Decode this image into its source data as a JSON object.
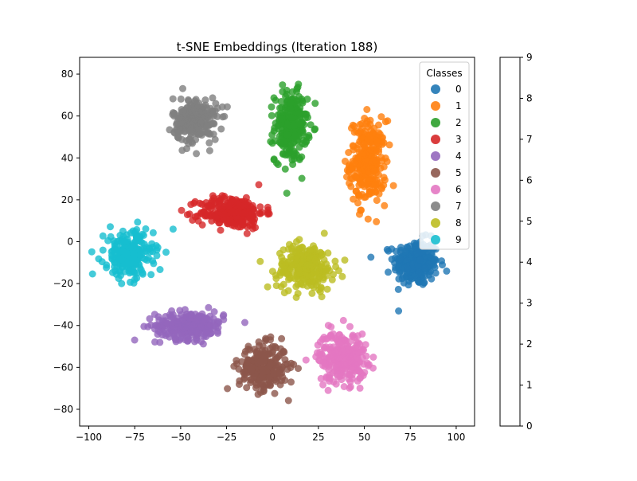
{
  "chart_data": {
    "type": "scatter",
    "title": "t-SNE Embeddings (Iteration 188)",
    "xlabel": "",
    "ylabel": "",
    "xlim": [
      -105,
      110
    ],
    "ylim": [
      -88,
      88
    ],
    "xticks": [
      -100,
      -75,
      -50,
      -25,
      0,
      25,
      50,
      75,
      100
    ],
    "yticks": [
      -80,
      -60,
      -40,
      -20,
      0,
      20,
      40,
      60,
      80
    ],
    "grid": false,
    "legend": {
      "title": "Classes",
      "placement": "top-right",
      "entries": [
        "0",
        "1",
        "2",
        "3",
        "4",
        "5",
        "6",
        "7",
        "8",
        "9"
      ]
    },
    "colors": [
      "#1f77b4",
      "#ff7f0e",
      "#2ca02c",
      "#d62728",
      "#9467bd",
      "#8c564b",
      "#e377c2",
      "#7f7f7f",
      "#bcbd22",
      "#17becf"
    ],
    "colorbar": {
      "ticks": [
        "0",
        "1",
        "2",
        "3",
        "4",
        "5",
        "6",
        "7",
        "8",
        "9"
      ],
      "range": [
        0,
        9
      ]
    },
    "clusters": [
      {
        "class": 0,
        "center": [
          78,
          -10
        ],
        "spread": [
          11,
          10
        ],
        "n": 260
      },
      {
        "class": 1,
        "center": [
          52,
          38
        ],
        "spread": [
          9,
          18
        ],
        "n": 280
      },
      {
        "class": 2,
        "center": [
          10,
          55
        ],
        "spread": [
          8,
          15
        ],
        "n": 260
      },
      {
        "class": 3,
        "center": [
          -22,
          14
        ],
        "spread": [
          16,
          7
        ],
        "n": 260
      },
      {
        "class": 4,
        "center": [
          -45,
          -40
        ],
        "spread": [
          17,
          6
        ],
        "n": 260
      },
      {
        "class": 5,
        "center": [
          -5,
          -60
        ],
        "spread": [
          12,
          10
        ],
        "n": 250
      },
      {
        "class": 6,
        "center": [
          38,
          -55
        ],
        "spread": [
          12,
          11
        ],
        "n": 250
      },
      {
        "class": 7,
        "center": [
          -42,
          58
        ],
        "spread": [
          11,
          10
        ],
        "n": 230
      },
      {
        "class": 8,
        "center": [
          18,
          -12
        ],
        "spread": [
          14,
          10
        ],
        "n": 260
      },
      {
        "class": 9,
        "center": [
          -78,
          -6
        ],
        "spread": [
          12,
          10
        ],
        "n": 250
      }
    ]
  }
}
